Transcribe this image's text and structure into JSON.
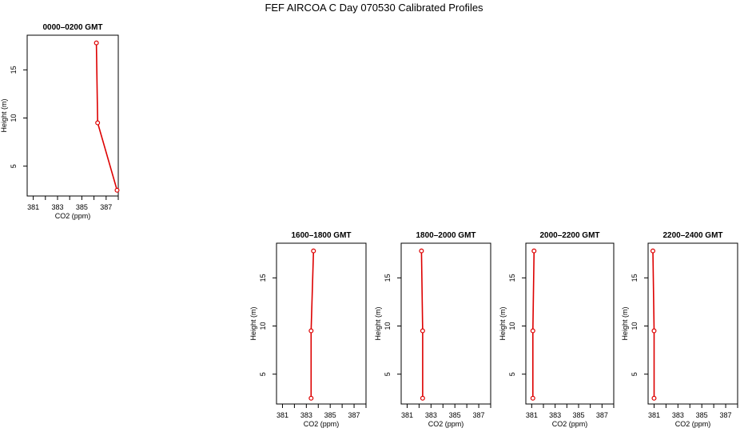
{
  "title": "FEF AIRCOA C  Day 070530  Calibrated Profiles",
  "colors": {
    "series": "#dd0000",
    "axis": "#000000",
    "background": "#ffffff"
  },
  "chart_data": [
    {
      "type": "line",
      "panel_title": "0000–0200 GMT",
      "xlabel": "CO2 (ppm)",
      "ylabel": "Height (m)",
      "x_ticks": [
        381,
        382,
        383,
        384,
        385,
        386,
        387,
        388
      ],
      "x_tick_labels": [
        "381",
        "",
        "383",
        "",
        "385",
        "",
        "387",
        ""
      ],
      "y_ticks": [
        5,
        10,
        15
      ],
      "y_tick_labels": [
        "5",
        "10",
        "15"
      ],
      "xlim": [
        380.5,
        388.0
      ],
      "ylim": [
        1.9,
        18.6
      ],
      "grid": false,
      "points": [
        {
          "co2": 386.2,
          "height": 17.8
        },
        {
          "co2": 386.3,
          "height": 9.5
        },
        {
          "co2": 387.9,
          "height": 2.5
        }
      ]
    },
    {
      "type": "line",
      "panel_title": "1600–1800 GMT",
      "xlabel": "CO2 (ppm)",
      "ylabel": "Height (m)",
      "x_ticks": [
        381,
        382,
        383,
        384,
        385,
        386,
        387,
        388
      ],
      "x_tick_labels": [
        "381",
        "",
        "383",
        "",
        "385",
        "",
        "387",
        ""
      ],
      "y_ticks": [
        5,
        10,
        15
      ],
      "y_tick_labels": [
        "5",
        "10",
        "15"
      ],
      "xlim": [
        380.5,
        388.0
      ],
      "ylim": [
        1.9,
        18.6
      ],
      "grid": false,
      "points": [
        {
          "co2": 383.6,
          "height": 17.8
        },
        {
          "co2": 383.4,
          "height": 9.5
        },
        {
          "co2": 383.4,
          "height": 2.5
        }
      ]
    },
    {
      "type": "line",
      "panel_title": "1800–2000 GMT",
      "xlabel": "CO2 (ppm)",
      "ylabel": "Height (m)",
      "x_ticks": [
        381,
        382,
        383,
        384,
        385,
        386,
        387,
        388
      ],
      "x_tick_labels": [
        "381",
        "",
        "383",
        "",
        "385",
        "",
        "387",
        ""
      ],
      "y_ticks": [
        5,
        10,
        15
      ],
      "y_tick_labels": [
        "5",
        "10",
        "15"
      ],
      "xlim": [
        380.5,
        388.0
      ],
      "ylim": [
        1.9,
        18.6
      ],
      "grid": false,
      "points": [
        {
          "co2": 382.2,
          "height": 17.8
        },
        {
          "co2": 382.3,
          "height": 9.5
        },
        {
          "co2": 382.3,
          "height": 2.5
        }
      ]
    },
    {
      "type": "line",
      "panel_title": "2000–2200 GMT",
      "xlabel": "CO2 (ppm)",
      "ylabel": "Height (m)",
      "x_ticks": [
        381,
        382,
        383,
        384,
        385,
        386,
        387,
        388
      ],
      "x_tick_labels": [
        "381",
        "",
        "383",
        "",
        "385",
        "",
        "387",
        ""
      ],
      "y_ticks": [
        5,
        10,
        15
      ],
      "y_tick_labels": [
        "5",
        "10",
        "15"
      ],
      "xlim": [
        380.5,
        388.0
      ],
      "ylim": [
        1.9,
        18.6
      ],
      "grid": false,
      "points": [
        {
          "co2": 381.2,
          "height": 17.8
        },
        {
          "co2": 381.1,
          "height": 9.5
        },
        {
          "co2": 381.1,
          "height": 2.5
        }
      ]
    },
    {
      "type": "line",
      "panel_title": "2200–2400 GMT",
      "xlabel": "CO2 (ppm)",
      "ylabel": "Height (m)",
      "x_ticks": [
        381,
        382,
        383,
        384,
        385,
        386,
        387,
        388
      ],
      "x_tick_labels": [
        "381",
        "",
        "383",
        "",
        "385",
        "",
        "387",
        ""
      ],
      "y_ticks": [
        5,
        10,
        15
      ],
      "y_tick_labels": [
        "5",
        "10",
        "15"
      ],
      "xlim": [
        380.5,
        388.0
      ],
      "ylim": [
        1.9,
        18.6
      ],
      "grid": false,
      "points": [
        {
          "co2": 380.9,
          "height": 17.8
        },
        {
          "co2": 381.0,
          "height": 9.5
        },
        {
          "co2": 381.0,
          "height": 2.5
        }
      ]
    }
  ]
}
